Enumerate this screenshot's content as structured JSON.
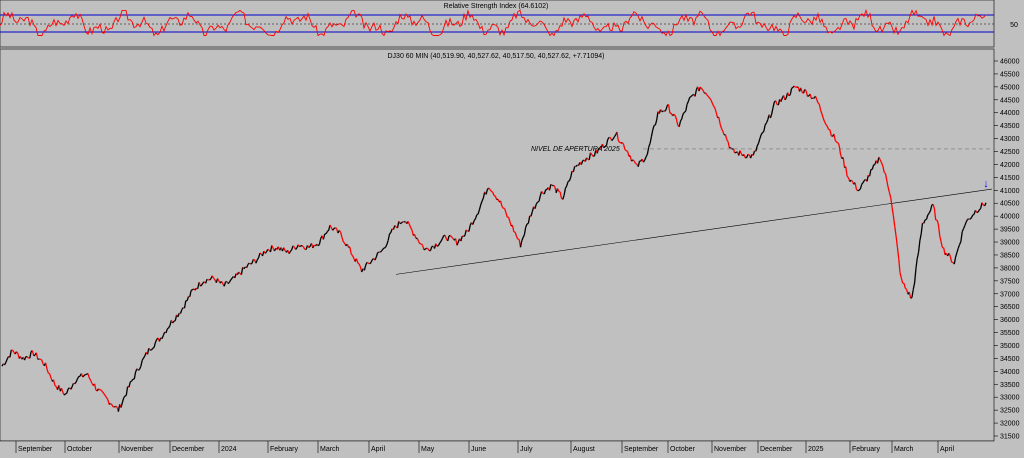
{
  "chart_data": [
    {
      "type": "line",
      "panel": "indicator",
      "title": "Relative Strength Index (64.6102)",
      "series": [
        {
          "name": "Relative Strength Index",
          "color": "#ff0000"
        }
      ],
      "reference_levels": [
        70,
        50,
        30
      ],
      "y_tick_labels": [
        "50"
      ],
      "ylim": [
        10,
        90
      ],
      "values_note": "oscillating roughly between 30 and 75"
    },
    {
      "type": "line",
      "panel": "price",
      "title": "DJ30 60 MIN (40,519.90, 40,527.62, 40,517.50, 40,527.62, +7.71094)",
      "annotation": "NIVEL DE APERTURA 2025",
      "level_nivel_apertura": 42600,
      "trendline": {
        "from": [
          "April",
          37750
        ],
        "to": [
          "April",
          41050
        ]
      },
      "marker": {
        "symbol": "↓",
        "color": "#0000ff",
        "near_value": 41200
      },
      "ylim": [
        31500,
        46000
      ],
      "y_ticks": [
        46000,
        45500,
        45000,
        44500,
        44000,
        43500,
        43000,
        42500,
        42000,
        41500,
        41000,
        40500,
        40000,
        39500,
        39000,
        38500,
        38000,
        37500,
        37000,
        36500,
        36000,
        35500,
        35000,
        34500,
        34000,
        33500,
        33000,
        32500,
        32000,
        31500
      ],
      "x_tick_labels": [
        "September",
        "October",
        "November",
        "December",
        "2024",
        "February",
        "March",
        "April",
        "May",
        "June",
        "July",
        "August",
        "September",
        "October",
        "November",
        "December",
        "2025",
        "February",
        "March",
        "April"
      ],
      "close_points": [
        [
          "Sep 2023",
          34200
        ],
        [
          "Sep 2023",
          34800
        ],
        [
          "Sep 2023",
          34500
        ],
        [
          "Sep 2023",
          34700
        ],
        [
          "Sep 2023",
          34300
        ],
        [
          "Oct 2023",
          33500
        ],
        [
          "Oct 2023",
          33100
        ],
        [
          "Oct 2023",
          33700
        ],
        [
          "Oct 2023",
          33900
        ],
        [
          "Oct 2023",
          33300
        ],
        [
          "Oct 2023",
          32900
        ],
        [
          "Oct 2023",
          32500
        ],
        [
          "Nov 2023",
          33400
        ],
        [
          "Nov 2023",
          34200
        ],
        [
          "Nov 2023",
          34900
        ],
        [
          "Nov 2023",
          35300
        ],
        [
          "Dec 2023",
          35900
        ],
        [
          "Dec 2023",
          36400
        ],
        [
          "Dec 2023",
          37100
        ],
        [
          "Dec 2023",
          37500
        ],
        [
          "Jan 2024",
          37600
        ],
        [
          "Jan 2024",
          37300
        ],
        [
          "Jan 2024",
          37600
        ],
        [
          "Jan 2024",
          38000
        ],
        [
          "Feb 2024",
          38300
        ],
        [
          "Feb 2024",
          38700
        ],
        [
          "Feb 2024",
          38800
        ],
        [
          "Feb 2024",
          38600
        ],
        [
          "Mar 2024",
          38900
        ],
        [
          "Mar 2024",
          38800
        ],
        [
          "Mar 2024",
          39000
        ],
        [
          "Mar 2024",
          39600
        ],
        [
          "Apr 2024",
          39300
        ],
        [
          "Apr 2024",
          38600
        ],
        [
          "Apr 2024",
          37900
        ],
        [
          "Apr 2024",
          38300
        ],
        [
          "May 2024",
          38700
        ],
        [
          "May 2024",
          39500
        ],
        [
          "May 2024",
          39900
        ],
        [
          "May 2024",
          39300
        ],
        [
          "Jun 2024",
          38700
        ],
        [
          "Jun 2024",
          38900
        ],
        [
          "Jun 2024",
          39200
        ],
        [
          "Jun 2024",
          39000
        ],
        [
          "Jul 2024",
          39400
        ],
        [
          "Jul 2024",
          40200
        ],
        [
          "Jul 2024",
          41200
        ],
        [
          "Jul 2024",
          40600
        ],
        [
          "Aug 2024",
          39800
        ],
        [
          "Aug 2024",
          38900
        ],
        [
          "Aug 2024",
          40100
        ],
        [
          "Aug 2024",
          40900
        ],
        [
          "Sep 2024",
          41200
        ],
        [
          "Sep 2024",
          40700
        ],
        [
          "Sep 2024",
          41800
        ],
        [
          "Sep 2024",
          42200
        ],
        [
          "Oct 2024",
          42400
        ],
        [
          "Oct 2024",
          42800
        ],
        [
          "Oct 2024",
          43200
        ],
        [
          "Oct 2024",
          42600
        ],
        [
          "Oct 2024",
          41900
        ],
        [
          "Nov 2024",
          42400
        ],
        [
          "Nov 2024",
          44000
        ],
        [
          "Nov 2024",
          44200
        ],
        [
          "Nov 2024",
          43500
        ],
        [
          "Nov 2024",
          44500
        ],
        [
          "Dec 2024",
          45000
        ],
        [
          "Dec 2024",
          44600
        ],
        [
          "Dec 2024",
          43500
        ],
        [
          "Dec 2024",
          42500
        ],
        [
          "Jan 2025",
          42400
        ],
        [
          "Jan 2025",
          42300
        ],
        [
          "Jan 2025",
          43300
        ],
        [
          "Jan 2025",
          44300
        ],
        [
          "Jan 2025",
          44600
        ],
        [
          "Feb 2025",
          45000
        ],
        [
          "Feb 2025",
          44800
        ],
        [
          "Feb 2025",
          44500
        ],
        [
          "Feb 2025",
          43500
        ],
        [
          "Mar 2025",
          42800
        ],
        [
          "Mar 2025",
          41500
        ],
        [
          "Mar 2025",
          41000
        ],
        [
          "Mar 2025",
          41600
        ],
        [
          "Mar 2025",
          42300
        ],
        [
          "Apr 2025",
          40800
        ],
        [
          "Apr 2025",
          37500
        ],
        [
          "Apr 2025",
          36800
        ],
        [
          "Apr 2025",
          39700
        ],
        [
          "Apr 2025",
          40400
        ],
        [
          "Apr 2025",
          38700
        ],
        [
          "Apr 2025",
          38200
        ],
        [
          "Apr 2025",
          39700
        ],
        [
          "Apr 2025",
          40200
        ],
        [
          "Apr 2025",
          40520
        ]
      ]
    }
  ],
  "colors": {
    "background": "#c0c0c0",
    "price_up": "#000000",
    "price_down": "#ff0000",
    "rsi": "#ff0000",
    "rsi_bands": "#0000cc",
    "marker": "#0000ff"
  }
}
